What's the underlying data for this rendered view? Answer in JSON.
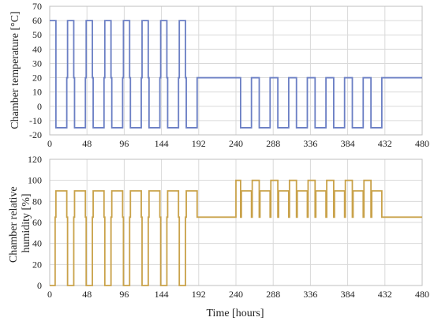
{
  "chart_data": [
    {
      "type": "line",
      "title": "",
      "xlabel": "",
      "ylabel": "Chamber temperature [°C]",
      "xlim": [
        0,
        480
      ],
      "ylim": [
        -20,
        70
      ],
      "x_ticks": [
        0,
        48,
        96,
        144,
        192,
        240,
        288,
        336,
        384,
        432,
        480
      ],
      "y_ticks": [
        -20,
        -10,
        0,
        10,
        20,
        30,
        40,
        50,
        60,
        70
      ],
      "grid": true,
      "color": "#6b7fc4",
      "series": [
        {
          "values": [
            [
              0,
              60
            ],
            [
              8,
              60
            ],
            [
              8,
              -15
            ],
            [
              22,
              -15
            ],
            [
              22,
              20
            ],
            [
              23,
              20
            ],
            [
              23,
              60
            ],
            [
              31,
              60
            ],
            [
              31,
              20
            ],
            [
              32,
              20
            ],
            [
              32,
              -15
            ],
            [
              46,
              -15
            ],
            [
              46,
              20
            ],
            [
              47,
              20
            ],
            [
              47,
              60
            ],
            [
              55,
              60
            ],
            [
              55,
              20
            ],
            [
              56,
              20
            ],
            [
              56,
              -15
            ],
            [
              70,
              -15
            ],
            [
              70,
              20
            ],
            [
              71,
              20
            ],
            [
              71,
              60
            ],
            [
              79,
              60
            ],
            [
              79,
              20
            ],
            [
              80,
              20
            ],
            [
              80,
              -15
            ],
            [
              94,
              -15
            ],
            [
              94,
              20
            ],
            [
              95,
              20
            ],
            [
              95,
              60
            ],
            [
              103,
              60
            ],
            [
              103,
              20
            ],
            [
              104,
              20
            ],
            [
              104,
              -15
            ],
            [
              118,
              -15
            ],
            [
              118,
              20
            ],
            [
              119,
              20
            ],
            [
              119,
              60
            ],
            [
              127,
              60
            ],
            [
              127,
              20
            ],
            [
              128,
              20
            ],
            [
              128,
              -15
            ],
            [
              142,
              -15
            ],
            [
              142,
              20
            ],
            [
              143,
              20
            ],
            [
              143,
              60
            ],
            [
              151,
              60
            ],
            [
              151,
              20
            ],
            [
              152,
              20
            ],
            [
              152,
              -15
            ],
            [
              166,
              -15
            ],
            [
              166,
              20
            ],
            [
              167,
              20
            ],
            [
              167,
              60
            ],
            [
              175,
              60
            ],
            [
              175,
              20
            ],
            [
              176,
              20
            ],
            [
              176,
              -15
            ],
            [
              190,
              -15
            ],
            [
              190,
              20
            ],
            [
              246,
              20
            ],
            [
              246,
              -15
            ],
            [
              260,
              -15
            ],
            [
              260,
              20
            ],
            [
              270,
              20
            ],
            [
              270,
              -15
            ],
            [
              284,
              -15
            ],
            [
              284,
              20
            ],
            [
              294,
              20
            ],
            [
              294,
              -15
            ],
            [
              308,
              -15
            ],
            [
              308,
              20
            ],
            [
              318,
              20
            ],
            [
              318,
              -15
            ],
            [
              332,
              -15
            ],
            [
              332,
              20
            ],
            [
              342,
              20
            ],
            [
              342,
              -15
            ],
            [
              356,
              -15
            ],
            [
              356,
              20
            ],
            [
              366,
              20
            ],
            [
              366,
              -15
            ],
            [
              380,
              -15
            ],
            [
              380,
              20
            ],
            [
              390,
              20
            ],
            [
              390,
              -15
            ],
            [
              404,
              -15
            ],
            [
              404,
              20
            ],
            [
              414,
              20
            ],
            [
              414,
              -15
            ],
            [
              428,
              -15
            ],
            [
              428,
              20
            ],
            [
              480,
              20
            ]
          ]
        }
      ]
    },
    {
      "type": "line",
      "title": "",
      "xlabel": "Time [hours]",
      "ylabel": "Chamber relative humidity [%]",
      "ylabel_lines": [
        "Chamber relative",
        "humidity [%]"
      ],
      "xlim": [
        0,
        480
      ],
      "ylim": [
        0,
        120
      ],
      "x_ticks": [
        0,
        48,
        96,
        144,
        192,
        240,
        288,
        336,
        384,
        432,
        480
      ],
      "y_ticks": [
        0,
        20,
        40,
        60,
        80,
        100,
        120
      ],
      "grid": true,
      "color": "#c9a24a",
      "series": [
        {
          "values": [
            [
              0,
              0
            ],
            [
              7,
              0
            ],
            [
              7,
              65
            ],
            [
              8,
              65
            ],
            [
              8,
              90
            ],
            [
              22,
              90
            ],
            [
              22,
              65
            ],
            [
              23,
              65
            ],
            [
              23,
              0
            ],
            [
              31,
              0
            ],
            [
              31,
              65
            ],
            [
              32,
              65
            ],
            [
              32,
              90
            ],
            [
              46,
              90
            ],
            [
              46,
              65
            ],
            [
              47,
              65
            ],
            [
              47,
              0
            ],
            [
              55,
              0
            ],
            [
              55,
              65
            ],
            [
              56,
              65
            ],
            [
              56,
              90
            ],
            [
              70,
              90
            ],
            [
              70,
              65
            ],
            [
              71,
              65
            ],
            [
              71,
              0
            ],
            [
              79,
              0
            ],
            [
              79,
              65
            ],
            [
              80,
              65
            ],
            [
              80,
              90
            ],
            [
              94,
              90
            ],
            [
              94,
              65
            ],
            [
              95,
              65
            ],
            [
              95,
              0
            ],
            [
              103,
              0
            ],
            [
              103,
              65
            ],
            [
              104,
              65
            ],
            [
              104,
              90
            ],
            [
              118,
              90
            ],
            [
              118,
              65
            ],
            [
              119,
              65
            ],
            [
              119,
              0
            ],
            [
              127,
              0
            ],
            [
              127,
              65
            ],
            [
              128,
              65
            ],
            [
              128,
              90
            ],
            [
              142,
              90
            ],
            [
              142,
              65
            ],
            [
              143,
              65
            ],
            [
              143,
              0
            ],
            [
              151,
              0
            ],
            [
              151,
              65
            ],
            [
              152,
              65
            ],
            [
              152,
              90
            ],
            [
              166,
              90
            ],
            [
              166,
              65
            ],
            [
              167,
              65
            ],
            [
              167,
              0
            ],
            [
              175,
              0
            ],
            [
              175,
              65
            ],
            [
              176,
              65
            ],
            [
              176,
              90
            ],
            [
              190,
              90
            ],
            [
              190,
              65
            ],
            [
              240,
              65
            ],
            [
              240,
              100
            ],
            [
              246,
              100
            ],
            [
              246,
              65
            ],
            [
              247,
              65
            ],
            [
              247,
              90
            ],
            [
              260,
              90
            ],
            [
              260,
              65
            ],
            [
              261,
              65
            ],
            [
              261,
              100
            ],
            [
              270,
              100
            ],
            [
              270,
              65
            ],
            [
              271,
              65
            ],
            [
              271,
              90
            ],
            [
              284,
              90
            ],
            [
              284,
              65
            ],
            [
              285,
              65
            ],
            [
              285,
              100
            ],
            [
              294,
              100
            ],
            [
              294,
              65
            ],
            [
              295,
              65
            ],
            [
              295,
              90
            ],
            [
              308,
              90
            ],
            [
              308,
              65
            ],
            [
              309,
              65
            ],
            [
              309,
              100
            ],
            [
              318,
              100
            ],
            [
              318,
              65
            ],
            [
              319,
              65
            ],
            [
              319,
              90
            ],
            [
              332,
              90
            ],
            [
              332,
              65
            ],
            [
              333,
              65
            ],
            [
              333,
              100
            ],
            [
              342,
              100
            ],
            [
              342,
              65
            ],
            [
              343,
              65
            ],
            [
              343,
              90
            ],
            [
              356,
              90
            ],
            [
              356,
              65
            ],
            [
              357,
              65
            ],
            [
              357,
              100
            ],
            [
              366,
              100
            ],
            [
              366,
              65
            ],
            [
              367,
              65
            ],
            [
              367,
              90
            ],
            [
              380,
              90
            ],
            [
              380,
              65
            ],
            [
              381,
              65
            ],
            [
              381,
              100
            ],
            [
              390,
              100
            ],
            [
              390,
              65
            ],
            [
              391,
              65
            ],
            [
              391,
              90
            ],
            [
              404,
              90
            ],
            [
              404,
              65
            ],
            [
              405,
              65
            ],
            [
              405,
              100
            ],
            [
              414,
              100
            ],
            [
              414,
              65
            ],
            [
              415,
              65
            ],
            [
              415,
              90
            ],
            [
              428,
              90
            ],
            [
              428,
              65
            ],
            [
              480,
              65
            ]
          ]
        }
      ]
    }
  ]
}
